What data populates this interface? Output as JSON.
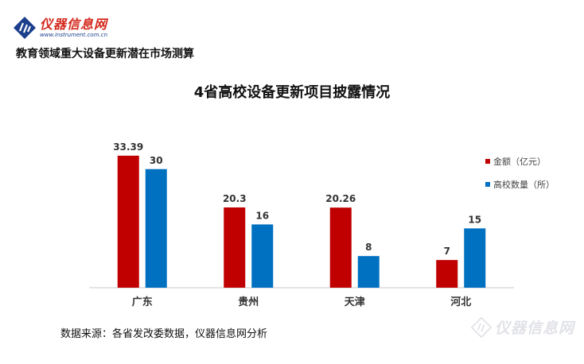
{
  "brand": {
    "name": "仪器信息网",
    "url": "www.instrument.com.cn"
  },
  "subtitle": "教育领域重大设备更新潜在市场测算",
  "source_note": "数据来源：各省发改委数据，仪器信息网分析",
  "watermark": "仪器信息网",
  "colors": {
    "brand_red": "#d42a1e",
    "series_red": "#c00000",
    "series_blue": "#0070c0"
  },
  "chart_data": {
    "type": "bar",
    "title": "4省高校设备更新项目披露情况",
    "categories": [
      "广东",
      "贵州",
      "天津",
      "河北"
    ],
    "series": [
      {
        "name": "金额（亿元）",
        "values": [
          33.39,
          20.3,
          20.26,
          7
        ],
        "labels": [
          "33.39",
          "20.3",
          "20.26",
          "7"
        ],
        "color": "#c00000"
      },
      {
        "name": "高校数量（所）",
        "values": [
          30,
          16,
          8,
          15
        ],
        "labels": [
          "30",
          "16",
          "8",
          "15"
        ],
        "color": "#0070c0"
      }
    ],
    "ylim": [
      0,
      40
    ],
    "grid": false,
    "legend_position": "right"
  }
}
